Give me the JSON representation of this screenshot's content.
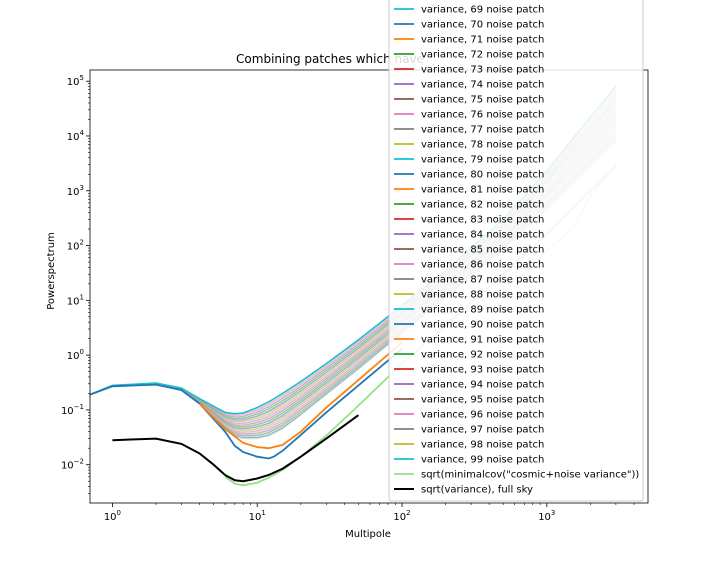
{
  "chart_data": {
    "type": "line",
    "title": "Combining patches which have",
    "xlabel": "Multipole",
    "ylabel": "Powerspectrum",
    "xscale": "log",
    "yscale": "log",
    "xlim": [
      0.7,
      5000
    ],
    "ylim": [
      0.002,
      160000
    ],
    "x_ticks": [
      {
        "base": "10",
        "exp": "0",
        "value": 1
      },
      {
        "base": "10",
        "exp": "1",
        "value": 10
      },
      {
        "base": "10",
        "exp": "2",
        "value": 100
      },
      {
        "base": "10",
        "exp": "3",
        "value": 1000
      }
    ],
    "y_ticks": [
      {
        "base": "10",
        "exp": "−2",
        "value": 0.01
      },
      {
        "base": "10",
        "exp": "−1",
        "value": 0.1
      },
      {
        "base": "10",
        "exp": "0",
        "value": 1
      },
      {
        "base": "10",
        "exp": "1",
        "value": 10
      },
      {
        "base": "10",
        "exp": "2",
        "value": 100
      },
      {
        "base": "10",
        "exp": "3",
        "value": 1000
      },
      {
        "base": "10",
        "exp": "4",
        "value": 10000
      },
      {
        "base": "10",
        "exp": "5",
        "value": 100000
      }
    ],
    "legend_position": "upper-right",
    "noise_band": {
      "name": "variance, N noise patch",
      "color": "#d8cfc4",
      "x": [
        0.7,
        1,
        2,
        3,
        4,
        6,
        7,
        8,
        10,
        12,
        15,
        20,
        30,
        50,
        100,
        200,
        500,
        1000,
        2000,
        3000
      ],
      "lower": [
        0.19,
        0.27,
        0.29,
        0.23,
        0.13,
        0.045,
        0.033,
        0.03,
        0.03,
        0.033,
        0.045,
        0.08,
        0.19,
        0.55,
        2.5,
        11,
        85,
        450,
        2800,
        8000
      ],
      "upper": [
        0.19,
        0.28,
        0.31,
        0.25,
        0.16,
        0.09,
        0.085,
        0.088,
        0.11,
        0.14,
        0.2,
        0.33,
        0.7,
        1.9,
        8,
        35,
        300,
        2300,
        22000,
        80000
      ]
    },
    "series": [
      {
        "name": "variance, 69 noise patch",
        "color": "#17becf",
        "style": "envelope-upper"
      },
      {
        "name": "variance, 70 noise patch",
        "color": "#1f77b4",
        "style": "lower",
        "x": [
          0.7,
          1,
          2,
          3,
          4,
          6,
          7,
          8,
          10,
          12,
          13,
          15,
          20,
          30,
          50,
          100
        ],
        "y": [
          0.19,
          0.27,
          0.29,
          0.23,
          0.13,
          0.04,
          0.022,
          0.017,
          0.014,
          0.013,
          0.014,
          0.018,
          0.035,
          0.09,
          0.28,
          1.3
        ]
      },
      {
        "name": "variance, 71 noise patch",
        "color": "#ff7f0e",
        "style": "lower",
        "x": [
          4,
          6,
          8,
          10,
          12,
          15,
          20,
          30,
          50,
          100
        ],
        "y": [
          0.13,
          0.045,
          0.025,
          0.021,
          0.02,
          0.023,
          0.04,
          0.11,
          0.35,
          1.7
        ]
      },
      {
        "name": "variance, 72 noise patch",
        "color": "#2ca02c"
      },
      {
        "name": "variance, 73 noise patch",
        "color": "#d62728"
      },
      {
        "name": "variance, 74 noise patch",
        "color": "#9467bd"
      },
      {
        "name": "variance, 75 noise patch",
        "color": "#8c564b"
      },
      {
        "name": "variance, 76 noise patch",
        "color": "#e377c2"
      },
      {
        "name": "variance, 77 noise patch",
        "color": "#7f7f7f"
      },
      {
        "name": "variance, 78 noise patch",
        "color": "#bcbd22"
      },
      {
        "name": "variance, 79 noise patch",
        "color": "#17becf"
      },
      {
        "name": "variance, 80 noise patch",
        "color": "#1f77b4"
      },
      {
        "name": "variance, 81 noise patch",
        "color": "#ff7f0e"
      },
      {
        "name": "variance, 82 noise patch",
        "color": "#2ca02c"
      },
      {
        "name": "variance, 83 noise patch",
        "color": "#d62728"
      },
      {
        "name": "variance, 84 noise patch",
        "color": "#9467bd"
      },
      {
        "name": "variance, 85 noise patch",
        "color": "#8c564b"
      },
      {
        "name": "variance, 86 noise patch",
        "color": "#e377c2"
      },
      {
        "name": "variance, 87 noise patch",
        "color": "#7f7f7f"
      },
      {
        "name": "variance, 88 noise patch",
        "color": "#bcbd22"
      },
      {
        "name": "variance, 89 noise patch",
        "color": "#17becf"
      },
      {
        "name": "variance, 90 noise patch",
        "color": "#1f77b4"
      },
      {
        "name": "variance, 91 noise patch",
        "color": "#ff7f0e"
      },
      {
        "name": "variance, 92 noise patch",
        "color": "#2ca02c"
      },
      {
        "name": "variance, 93 noise patch",
        "color": "#d62728"
      },
      {
        "name": "variance, 94 noise patch",
        "color": "#9467bd"
      },
      {
        "name": "variance, 95 noise patch",
        "color": "#8c564b"
      },
      {
        "name": "variance, 96 noise patch",
        "color": "#e377c2"
      },
      {
        "name": "variance, 97 noise patch",
        "color": "#7f7f7f"
      },
      {
        "name": "variance, 98 noise patch",
        "color": "#bcbd22"
      },
      {
        "name": "variance, 99 noise patch",
        "color": "#17becf"
      },
      {
        "name": "sqrt(minimalcov(\"cosmic+noise variance\"))",
        "color": "#98df8a",
        "style": "lower",
        "x": [
          6,
          7,
          8,
          10,
          12,
          15,
          20,
          30,
          50,
          100,
          200,
          500,
          1000,
          2000,
          3000
        ],
        "y": [
          0.006,
          0.0045,
          0.0042,
          0.0047,
          0.0058,
          0.008,
          0.014,
          0.034,
          0.12,
          0.7,
          3.5,
          30,
          160,
          1000,
          2800
        ]
      },
      {
        "name": "sqrt(variance), full sky",
        "color": "#000000",
        "style": "lower",
        "x": [
          1,
          2,
          3,
          4,
          5,
          6,
          7,
          8,
          10,
          12,
          15,
          20,
          30,
          50
        ],
        "y": [
          0.028,
          0.03,
          0.024,
          0.016,
          0.01,
          0.0065,
          0.0052,
          0.005,
          0.0056,
          0.0065,
          0.0085,
          0.014,
          0.03,
          0.08
        ]
      }
    ],
    "faint_lines": [
      {
        "color": "#bfe3ee",
        "x": [
          200,
          500,
          1000,
          2000,
          3000
        ],
        "y": [
          20,
          150,
          800,
          5000,
          16000
        ]
      },
      {
        "color": "#f2dcc4",
        "x": [
          200,
          500,
          1000,
          2000,
          3000
        ],
        "y": [
          30,
          250,
          1500,
          10000,
          30000
        ]
      },
      {
        "color": "#c8ccd6",
        "x": [
          200,
          400,
          700,
          1000,
          1500,
          2000,
          3000
        ],
        "y": [
          4,
          12,
          30,
          80,
          200,
          800,
          3000
        ]
      }
    ]
  }
}
